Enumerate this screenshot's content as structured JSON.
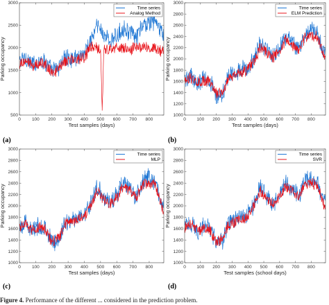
{
  "caption": {
    "label": "Figure 4.",
    "text": "Performance of the different ... considered in the prediction problem."
  },
  "colors": {
    "time_series": "#1f77d4",
    "prediction": "#e8141b",
    "axis": "#444444",
    "background": "#ffffff"
  },
  "chart_data": [
    {
      "type": "line",
      "panel": "(a)",
      "xlabel": "Test samples (days)",
      "ylabel": "Parking occupancy",
      "xlim": [
        0,
        890
      ],
      "ylim": [
        500,
        3000
      ],
      "xticks": [
        0,
        100,
        200,
        300,
        400,
        500,
        600,
        700,
        800
      ],
      "yticks": [
        500,
        1000,
        1500,
        2000,
        2500,
        3000
      ],
      "legend_position": "top-right",
      "series": [
        {
          "name": "Time series",
          "color": "#1f77d4",
          "x": [
            0,
            40,
            80,
            120,
            160,
            200,
            240,
            280,
            320,
            360,
            400,
            440,
            480,
            520,
            560,
            600,
            640,
            680,
            720,
            760,
            800,
            840,
            880
          ],
          "y": [
            1700,
            1780,
            1620,
            1720,
            1680,
            1480,
            1550,
            1780,
            1750,
            1800,
            1900,
            2150,
            2500,
            2300,
            2150,
            2250,
            2450,
            2350,
            2200,
            2500,
            2550,
            2600,
            2300
          ]
        },
        {
          "name": "Analog Method",
          "color": "#e8141b",
          "x": [
            0,
            40,
            80,
            120,
            160,
            200,
            240,
            280,
            320,
            360,
            400,
            440,
            480,
            500,
            510,
            520,
            560,
            600,
            640,
            680,
            720,
            760,
            800,
            840,
            880
          ],
          "y": [
            1650,
            1700,
            1600,
            1650,
            1620,
            1450,
            1500,
            1700,
            1720,
            1750,
            1800,
            2000,
            2000,
            1950,
            600,
            1950,
            1950,
            2000,
            2000,
            1950,
            2000,
            2050,
            2000,
            2000,
            1900
          ]
        }
      ]
    },
    {
      "type": "line",
      "panel": "(b)",
      "xlabel": "Test samples (days)",
      "ylabel": "Parking occupancy",
      "xlim": [
        0,
        890
      ],
      "ylim": [
        1000,
        3000
      ],
      "xticks": [
        0,
        100,
        200,
        300,
        400,
        500,
        600,
        700,
        800
      ],
      "yticks": [
        1000,
        1200,
        1400,
        1600,
        1800,
        2000,
        2200,
        2400,
        2600,
        2800,
        3000
      ],
      "legend_position": "top-right",
      "series": [
        {
          "name": "Time series",
          "color": "#1f77d4",
          "x": [
            0,
            40,
            80,
            120,
            160,
            200,
            240,
            280,
            320,
            360,
            400,
            440,
            480,
            520,
            560,
            600,
            640,
            680,
            720,
            760,
            800,
            840,
            880
          ],
          "y": [
            1650,
            1700,
            1550,
            1650,
            1600,
            1350,
            1400,
            1700,
            1750,
            1800,
            1850,
            2000,
            2300,
            2150,
            2050,
            2200,
            2400,
            2300,
            2150,
            2450,
            2500,
            2450,
            2100
          ]
        },
        {
          "name": "ELM Prediction",
          "color": "#e8141b",
          "x": [
            0,
            40,
            80,
            120,
            160,
            200,
            240,
            280,
            320,
            360,
            400,
            440,
            480,
            520,
            560,
            600,
            640,
            680,
            720,
            760,
            800,
            840,
            880
          ],
          "y": [
            1620,
            1680,
            1560,
            1620,
            1580,
            1380,
            1420,
            1680,
            1720,
            1760,
            1820,
            1960,
            2220,
            2120,
            2040,
            2160,
            2340,
            2260,
            2140,
            2380,
            2420,
            2380,
            2080
          ]
        }
      ]
    },
    {
      "type": "line",
      "panel": "(c)",
      "xlabel": "Test samples (days)",
      "ylabel": "Parking occupancy",
      "xlim": [
        0,
        890
      ],
      "ylim": [
        1000,
        3000
      ],
      "xticks": [
        0,
        100,
        200,
        300,
        400,
        500,
        600,
        700,
        800
      ],
      "yticks": [
        1000,
        1200,
        1400,
        1600,
        1800,
        2000,
        2200,
        2400,
        2600,
        2800,
        3000
      ],
      "legend_position": "top-right",
      "series": [
        {
          "name": "Time series",
          "color": "#1f77d4",
          "x": [
            0,
            40,
            80,
            120,
            160,
            200,
            240,
            280,
            320,
            360,
            400,
            440,
            480,
            520,
            560,
            600,
            640,
            680,
            720,
            760,
            800,
            840,
            880
          ],
          "y": [
            1650,
            1700,
            1550,
            1650,
            1600,
            1350,
            1400,
            1700,
            1750,
            1800,
            1850,
            2050,
            2350,
            2150,
            2050,
            2200,
            2400,
            2300,
            2150,
            2450,
            2500,
            2400,
            2000
          ]
        },
        {
          "name": "MLP",
          "color": "#e8141b",
          "x": [
            0,
            40,
            80,
            120,
            160,
            200,
            240,
            280,
            320,
            360,
            400,
            440,
            480,
            520,
            560,
            600,
            640,
            680,
            720,
            760,
            800,
            840,
            880
          ],
          "y": [
            1620,
            1680,
            1560,
            1620,
            1580,
            1360,
            1420,
            1680,
            1720,
            1760,
            1820,
            2000,
            2250,
            2120,
            2040,
            2160,
            2340,
            2260,
            2140,
            2380,
            2420,
            2350,
            1950
          ]
        }
      ]
    },
    {
      "type": "line",
      "panel": "(d)",
      "xlabel": "Test samples (school days)",
      "ylabel": "Parking occupancy",
      "xlim": [
        0,
        890
      ],
      "ylim": [
        1000,
        3000
      ],
      "xticks": [
        0,
        100,
        200,
        300,
        400,
        500,
        600,
        700,
        800
      ],
      "yticks": [
        1000,
        1200,
        1400,
        1600,
        1800,
        2000,
        2200,
        2400,
        2600,
        2800,
        3000
      ],
      "legend_position": "top-right",
      "series": [
        {
          "name": "Time series",
          "color": "#1f77d4",
          "x": [
            0,
            40,
            80,
            120,
            160,
            200,
            240,
            280,
            320,
            360,
            400,
            440,
            480,
            520,
            560,
            600,
            640,
            680,
            720,
            760,
            800,
            840,
            880
          ],
          "y": [
            1650,
            1700,
            1550,
            1650,
            1600,
            1350,
            1400,
            1700,
            1750,
            1800,
            1850,
            2050,
            2350,
            2150,
            2050,
            2200,
            2400,
            2300,
            2150,
            2450,
            2500,
            2400,
            2050
          ]
        },
        {
          "name": "SVR",
          "color": "#e8141b",
          "x": [
            0,
            40,
            80,
            120,
            160,
            200,
            240,
            280,
            320,
            360,
            400,
            440,
            480,
            520,
            560,
            600,
            640,
            680,
            720,
            760,
            800,
            840,
            880
          ],
          "y": [
            1620,
            1680,
            1560,
            1620,
            1580,
            1360,
            1420,
            1680,
            1720,
            1760,
            1820,
            2000,
            2250,
            2120,
            2040,
            2160,
            2340,
            2260,
            2140,
            2380,
            2420,
            2350,
            2000
          ]
        }
      ]
    }
  ]
}
